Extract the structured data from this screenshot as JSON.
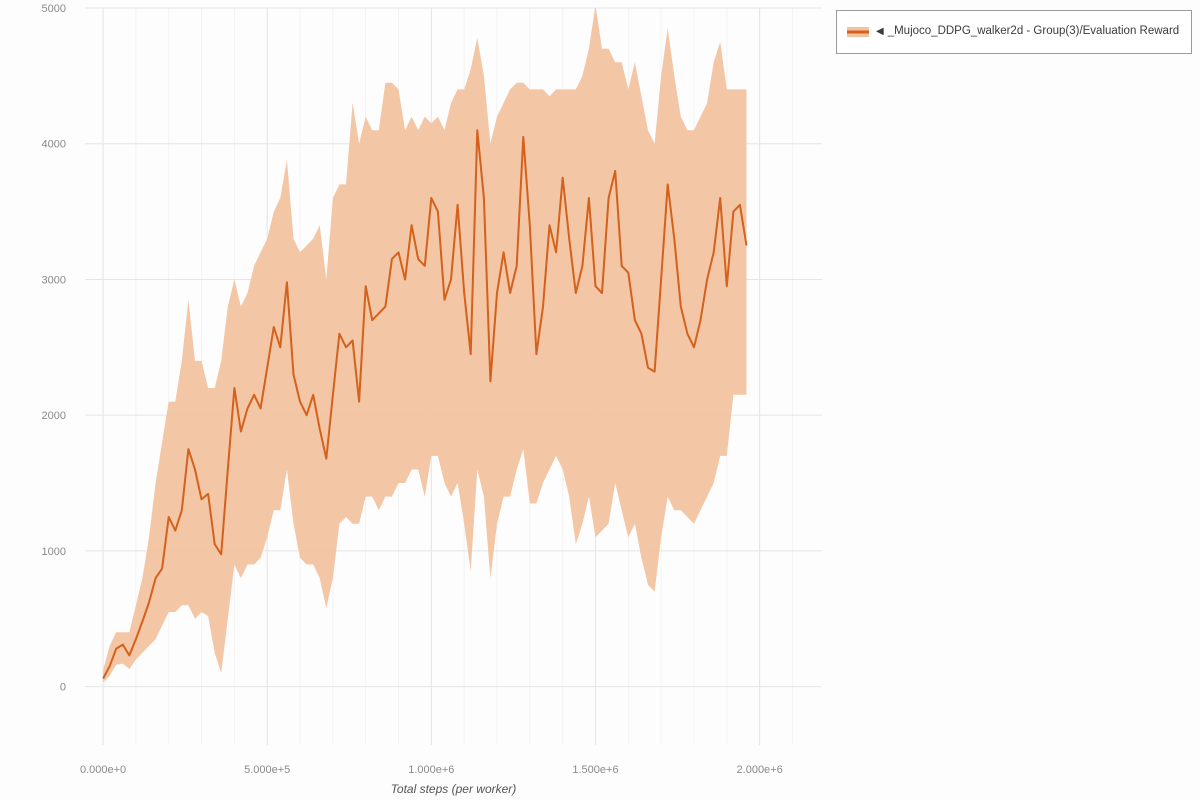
{
  "colors": {
    "line": "#d4611c",
    "band": "#f2c3a0",
    "grid": "#e5e5e5",
    "grid_minor": "#f3f3f3",
    "tick_text": "#8a8a8a",
    "axis_title": "#555555",
    "legend_border": "#9a9a9a",
    "legend_text": "#3b3b3b",
    "background": "#fdfdfd"
  },
  "legend": {
    "collapse_icon": "◀",
    "label": "_Mujoco_DDPG_walker2d - Group(3)/Evaluation Reward"
  },
  "chart_data": {
    "type": "line",
    "title": "",
    "xlabel": "Total steps (per worker)",
    "ylabel": "",
    "has_error_band": true,
    "grid": true,
    "legend_position": "top-right",
    "xlim": [
      -55000,
      2190000
    ],
    "ylim": [
      -430,
      5000
    ],
    "x_ticks": [
      {
        "value": 0,
        "label": "0.000e+0"
      },
      {
        "value": 500000,
        "label": "5.000e+5"
      },
      {
        "value": 1000000,
        "label": "1.000e+6"
      },
      {
        "value": 1500000,
        "label": "1.500e+6"
      },
      {
        "value": 2000000,
        "label": "2.000e+6"
      }
    ],
    "y_ticks": [
      {
        "value": 0,
        "label": "0"
      },
      {
        "value": 1000,
        "label": "1000"
      },
      {
        "value": 2000,
        "label": "2000"
      },
      {
        "value": 3000,
        "label": "3000"
      },
      {
        "value": 4000,
        "label": "4000"
      },
      {
        "value": 5000,
        "label": "5000"
      }
    ],
    "minor_x_grid_step": 100000,
    "series": [
      {
        "name": "_Mujoco_DDPG_walker2d - Group(3)/Evaluation Reward",
        "x": [
          0,
          20000,
          40000,
          60000,
          80000,
          100000,
          120000,
          140000,
          160000,
          180000,
          200000,
          220000,
          240000,
          260000,
          280000,
          300000,
          320000,
          340000,
          360000,
          380000,
          400000,
          420000,
          440000,
          460000,
          480000,
          500000,
          520000,
          540000,
          560000,
          580000,
          600000,
          620000,
          640000,
          660000,
          680000,
          700000,
          720000,
          740000,
          760000,
          780000,
          800000,
          820000,
          840000,
          860000,
          880000,
          900000,
          920000,
          940000,
          960000,
          980000,
          1000000,
          1020000,
          1040000,
          1060000,
          1080000,
          1100000,
          1120000,
          1140000,
          1160000,
          1180000,
          1200000,
          1220000,
          1240000,
          1260000,
          1280000,
          1300000,
          1320000,
          1340000,
          1360000,
          1380000,
          1400000,
          1420000,
          1440000,
          1460000,
          1480000,
          1500000,
          1520000,
          1540000,
          1560000,
          1580000,
          1600000,
          1620000,
          1640000,
          1660000,
          1680000,
          1700000,
          1720000,
          1740000,
          1760000,
          1780000,
          1800000,
          1820000,
          1840000,
          1860000,
          1880000,
          1900000,
          1920000,
          1940000,
          1960000
        ],
        "mean": [
          60,
          150,
          280,
          310,
          230,
          350,
          480,
          620,
          800,
          870,
          1250,
          1150,
          1300,
          1750,
          1600,
          1380,
          1420,
          1050,
          975,
          1600,
          2200,
          1880,
          2050,
          2150,
          2050,
          2350,
          2650,
          2500,
          2980,
          2300,
          2100,
          2000,
          2150,
          1900,
          1680,
          2150,
          2600,
          2500,
          2550,
          2100,
          2950,
          2700,
          2750,
          2800,
          3150,
          3200,
          3000,
          3400,
          3150,
          3100,
          3600,
          3500,
          2850,
          3000,
          3550,
          2900,
          2450,
          4100,
          3600,
          2250,
          2900,
          3200,
          2900,
          3100,
          4050,
          3400,
          2450,
          2800,
          3400,
          3200,
          3750,
          3300,
          2900,
          3100,
          3600,
          2950,
          2900,
          3600,
          3800,
          3100,
          3050,
          2700,
          2600,
          2350,
          2320,
          3000,
          3700,
          3300,
          2800,
          2600,
          2500,
          2700,
          3000,
          3200,
          3600,
          2950,
          3500,
          3550,
          3250
        ],
        "lower": [
          30,
          80,
          160,
          170,
          130,
          200,
          250,
          300,
          350,
          450,
          550,
          550,
          600,
          600,
          500,
          550,
          520,
          250,
          100,
          500,
          900,
          800,
          900,
          900,
          950,
          1100,
          1300,
          1300,
          1600,
          1200,
          950,
          900,
          900,
          800,
          580,
          800,
          1200,
          1250,
          1200,
          1200,
          1400,
          1400,
          1300,
          1400,
          1400,
          1500,
          1500,
          1600,
          1600,
          1400,
          1700,
          1700,
          1500,
          1400,
          1500,
          1200,
          850,
          1600,
          1400,
          800,
          1200,
          1400,
          1400,
          1600,
          1750,
          1350,
          1350,
          1500,
          1600,
          1700,
          1600,
          1400,
          1050,
          1200,
          1400,
          1100,
          1150,
          1200,
          1500,
          1300,
          1100,
          1200,
          950,
          750,
          700,
          1100,
          1400,
          1300,
          1300,
          1250,
          1200,
          1300,
          1400,
          1500,
          1700,
          1700,
          2150,
          2150,
          2150
        ],
        "upper": [
          120,
          300,
          400,
          400,
          400,
          600,
          800,
          1100,
          1500,
          1800,
          2100,
          2100,
          2400,
          2850,
          2400,
          2400,
          2200,
          2200,
          2400,
          2800,
          3000,
          2800,
          2900,
          3100,
          3200,
          3300,
          3500,
          3600,
          3880,
          3300,
          3200,
          3250,
          3300,
          3400,
          3000,
          3600,
          3700,
          3700,
          4300,
          4000,
          4200,
          4100,
          4100,
          4450,
          4450,
          4400,
          4100,
          4200,
          4100,
          4200,
          4150,
          4200,
          4100,
          4300,
          4400,
          4400,
          4550,
          4780,
          4500,
          4000,
          4200,
          4300,
          4400,
          4450,
          4450,
          4400,
          4400,
          4400,
          4350,
          4400,
          4400,
          4400,
          4400,
          4500,
          4700,
          5020,
          4700,
          4700,
          4600,
          4600,
          4400,
          4600,
          4350,
          4100,
          4000,
          4500,
          4850,
          4500,
          4200,
          4100,
          4100,
          4200,
          4300,
          4600,
          4750,
          4400,
          4400,
          4400,
          4400
        ]
      }
    ]
  }
}
